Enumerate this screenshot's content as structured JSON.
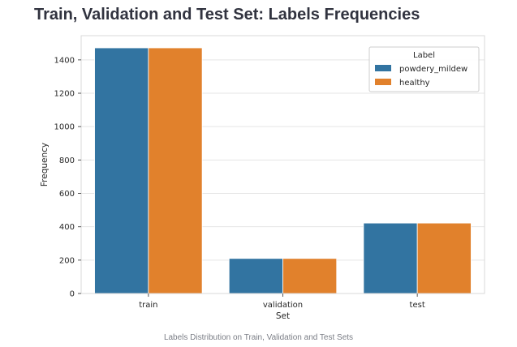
{
  "page": {
    "title": "Train, Validation and Test Set: Labels Frequencies",
    "caption": "Labels Distribution on Train, Validation and Test Sets"
  },
  "chart_data": {
    "type": "bar",
    "xlabel": "Set",
    "ylabel": "Frequency",
    "categories": [
      "train",
      "validation",
      "test"
    ],
    "series": [
      {
        "name": "powdery_mildew",
        "values": [
          1472,
          210,
          422
        ],
        "color": "#3274a1"
      },
      {
        "name": "healthy",
        "values": [
          1472,
          210,
          422
        ],
        "color": "#e1812c"
      }
    ],
    "ylim": [
      0,
      1545
    ],
    "yticks": [
      0,
      200,
      400,
      600,
      800,
      1000,
      1200,
      1400
    ],
    "grid": true,
    "legend": {
      "title": "Label",
      "position": "top-right"
    }
  }
}
